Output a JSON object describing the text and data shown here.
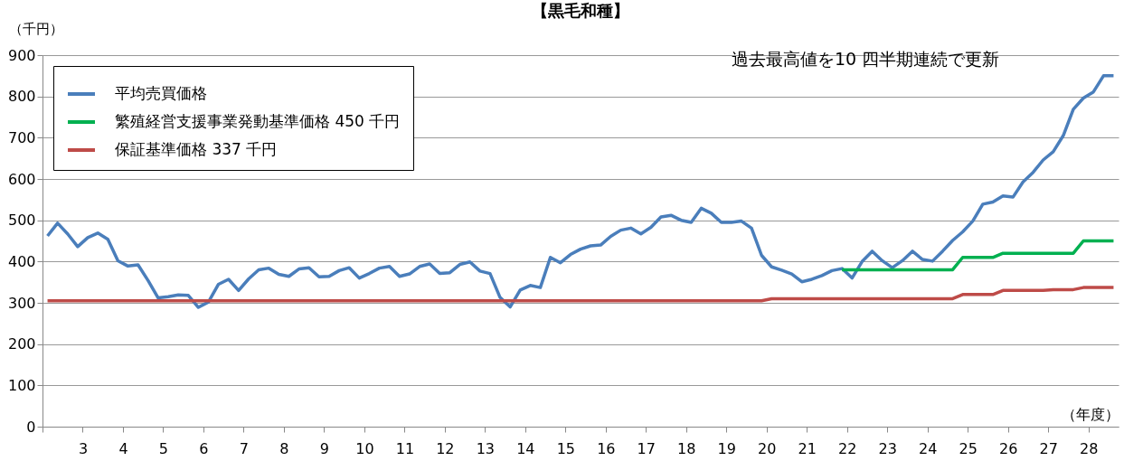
{
  "chart_data": {
    "type": "line",
    "title": "【黒毛和種】",
    "ylabel": "（千円）",
    "xlabel": "（年度）",
    "annotations": [
      "過去最高値を10 四半期連続で更新"
    ],
    "x": [
      2.125,
      2.375,
      2.625,
      2.875,
      3.125,
      3.375,
      3.625,
      3.875,
      4.125,
      4.375,
      4.625,
      4.875,
      5.125,
      5.375,
      5.625,
      5.875,
      6.125,
      6.375,
      6.625,
      6.875,
      7.125,
      7.375,
      7.625,
      7.875,
      8.125,
      8.375,
      8.625,
      8.875,
      9.125,
      9.375,
      9.625,
      9.875,
      10.125,
      10.375,
      10.625,
      10.875,
      11.125,
      11.375,
      11.625,
      11.875,
      12.125,
      12.375,
      12.625,
      12.875,
      13.125,
      13.375,
      13.625,
      13.875,
      14.125,
      14.375,
      14.625,
      14.875,
      15.125,
      15.375,
      15.625,
      15.875,
      16.125,
      16.375,
      16.625,
      16.875,
      17.125,
      17.375,
      17.625,
      17.875,
      18.125,
      18.375,
      18.625,
      18.875,
      19.125,
      19.375,
      19.625,
      19.875,
      20.125,
      20.375,
      20.625,
      20.875,
      21.125,
      21.375,
      21.625,
      21.875,
      22.125,
      22.375,
      22.625,
      22.875,
      23.125,
      23.375,
      23.625,
      23.875,
      24.125,
      24.375,
      24.625,
      24.875,
      25.125,
      25.375,
      25.625,
      25.875,
      26.125,
      26.375,
      26.625,
      26.875,
      27.125,
      27.375,
      27.625,
      27.875,
      28.125,
      28.375,
      28.625
    ],
    "series": [
      {
        "name": "平均売買価格",
        "color": "#4a7ebb",
        "values": [
          462,
          493,
          467,
          436,
          458,
          469,
          454,
          402,
          389,
          392,
          354,
          312,
          315,
          319,
          318,
          289,
          302,
          345,
          357,
          330,
          358,
          380,
          384,
          369,
          364,
          382,
          385,
          363,
          364,
          378,
          385,
          360,
          371,
          384,
          388,
          364,
          370,
          388,
          394,
          371,
          373,
          393,
          399,
          377,
          371,
          313,
          290,
          331,
          342,
          337,
          410,
          397,
          417,
          430,
          438,
          440,
          461,
          476,
          481,
          467,
          483,
          508,
          512,
          500,
          495,
          529,
          517,
          495,
          495,
          498,
          481,
          415,
          387,
          379,
          370,
          351,
          357,
          366,
          378,
          383,
          360,
          400,
          425,
          402,
          385,
          402,
          425,
          405,
          401,
          425,
          451,
          472,
          498,
          539,
          544,
          559,
          556,
          593,
          616,
          646,
          666,
          705,
          769,
          796,
          811,
          850,
          850
        ]
      },
      {
        "name": "繁殖経営支援事業発動基準価格 450 千円",
        "color": "#00b050",
        "values": [
          null,
          null,
          null,
          null,
          null,
          null,
          null,
          null,
          null,
          null,
          null,
          null,
          null,
          null,
          null,
          null,
          null,
          null,
          null,
          null,
          null,
          null,
          null,
          null,
          null,
          null,
          null,
          null,
          null,
          null,
          null,
          null,
          null,
          null,
          null,
          null,
          null,
          null,
          null,
          null,
          null,
          null,
          null,
          null,
          null,
          null,
          null,
          null,
          null,
          null,
          null,
          null,
          null,
          null,
          null,
          null,
          null,
          null,
          null,
          null,
          null,
          null,
          null,
          null,
          null,
          null,
          null,
          null,
          null,
          null,
          null,
          null,
          null,
          null,
          null,
          null,
          null,
          null,
          null,
          380,
          380,
          380,
          380,
          380,
          380,
          380,
          380,
          380,
          380,
          380,
          380,
          410,
          410,
          410,
          410,
          420,
          420,
          420,
          420,
          420,
          420,
          420,
          420,
          450,
          450,
          450,
          450
        ]
      },
      {
        "name": "保証基準価格 337 千円",
        "color": "#be4b48",
        "values": [
          305,
          305,
          305,
          305,
          305,
          305,
          305,
          305,
          305,
          305,
          305,
          305,
          305,
          305,
          305,
          305,
          305,
          305,
          305,
          305,
          305,
          305,
          305,
          305,
          305,
          305,
          305,
          305,
          305,
          305,
          305,
          305,
          305,
          305,
          305,
          305,
          305,
          305,
          305,
          305,
          305,
          305,
          305,
          305,
          305,
          305,
          305,
          305,
          305,
          305,
          305,
          305,
          305,
          305,
          305,
          305,
          305,
          305,
          305,
          305,
          305,
          305,
          305,
          305,
          305,
          305,
          305,
          305,
          305,
          305,
          305,
          305,
          310,
          310,
          310,
          310,
          310,
          310,
          310,
          310,
          310,
          310,
          310,
          310,
          310,
          310,
          310,
          310,
          310,
          310,
          310,
          320,
          320,
          320,
          320,
          330,
          330,
          330,
          330,
          330,
          332,
          332,
          332,
          337,
          337,
          337,
          337
        ]
      }
    ],
    "xlim": [
      2,
      28.75
    ],
    "xticks": [
      {
        "value": 2,
        "label": null
      },
      3,
      4,
      5,
      6,
      7,
      8,
      9,
      10,
      11,
      12,
      13,
      14,
      15,
      16,
      17,
      18,
      19,
      20,
      21,
      22,
      23,
      24,
      25,
      26,
      27,
      28
    ],
    "ylim": [
      0,
      900
    ],
    "yticks": [
      0,
      100,
      200,
      300,
      400,
      500,
      600,
      700,
      800,
      900
    ],
    "grid": "y",
    "legend": "top left"
  }
}
